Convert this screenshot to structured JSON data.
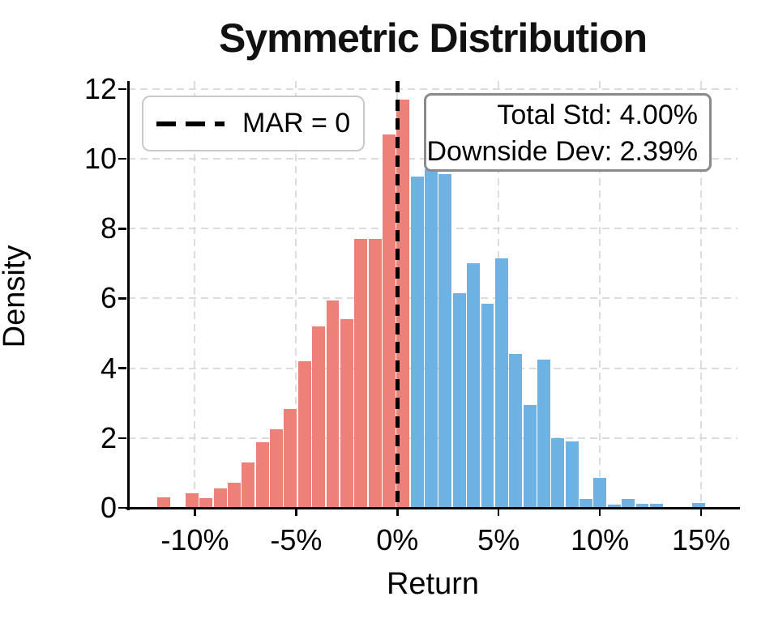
{
  "chart_data": {
    "type": "bar",
    "subtype": "histogram",
    "title": "Symmetric Distribution",
    "xlabel": "Return",
    "ylabel": "Density",
    "xlim": [
      -13.3,
      16.8
    ],
    "ylim": [
      0,
      12.23
    ],
    "grid": true,
    "x_tick_values": [
      -10,
      -5,
      0,
      5,
      10,
      15
    ],
    "x_tick_labels": [
      "-10%",
      "-5%",
      "0%",
      "5%",
      "10%",
      "15%"
    ],
    "y_tick_values": [
      0,
      2,
      4,
      6,
      8,
      10,
      12
    ],
    "bin_start": -11.88,
    "bin_width": 0.695,
    "densities": [
      0.3,
      0,
      0.42,
      0.28,
      0.55,
      0.72,
      1.3,
      1.87,
      2.26,
      2.84,
      4.2,
      5.2,
      5.95,
      5.4,
      7.7,
      7.7,
      10.7,
      11.7,
      9.5,
      9.7,
      9.55,
      6.15,
      7.0,
      5.85,
      7.15,
      4.4,
      2.95,
      4.25,
      2.0,
      1.9,
      0.25,
      0.85,
      0.1,
      0.26,
      0.12,
      0.12,
      0,
      0,
      0.15,
      0
    ],
    "n_downside_bins": 18,
    "downside_color": "#ED8077",
    "upside_color": "#6DB2E2",
    "mar_value": 0,
    "mar_line_color": "#000000",
    "legend_position": "upper left",
    "legend_label": "MAR = 0",
    "annotation_lines": [
      "Total Std: 4.00%",
      "Downside Dev: 2.39%"
    ],
    "total_std_pct": "4.00%",
    "downside_dev_pct": "2.39%"
  }
}
